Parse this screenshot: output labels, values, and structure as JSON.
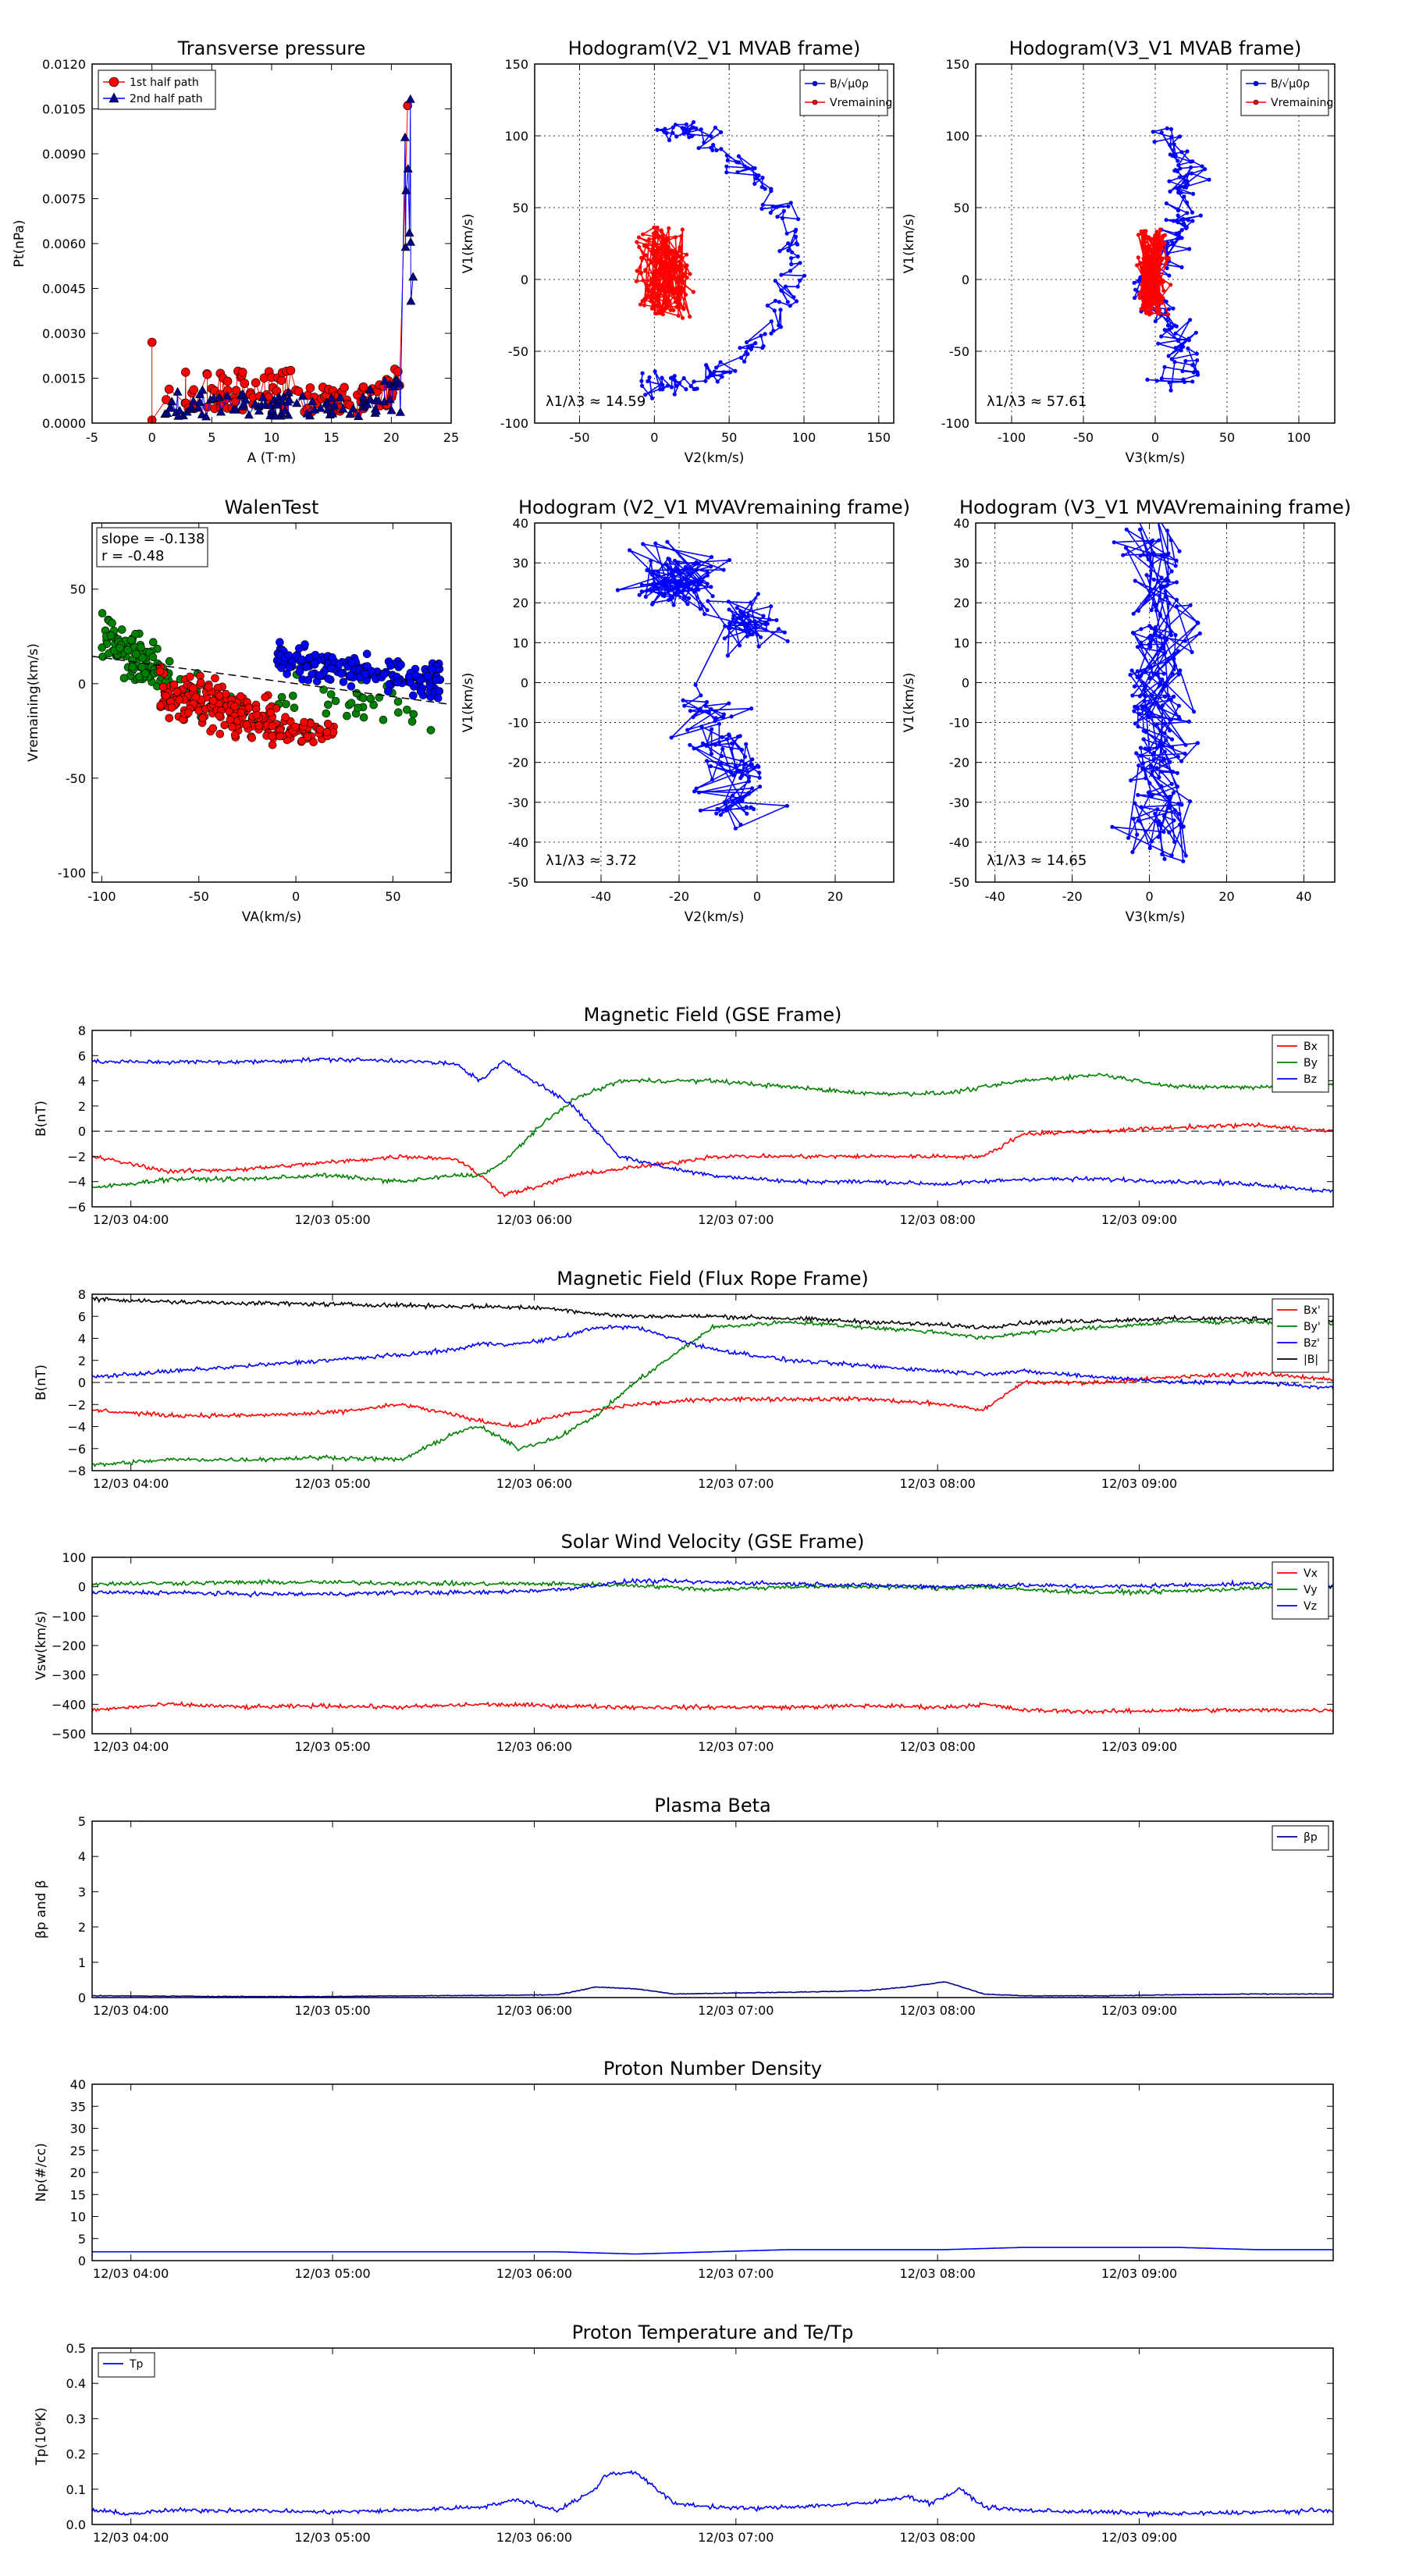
{
  "colors": {
    "red": "#ff0000",
    "blue": "#0000ff",
    "green": "#008000",
    "black": "#000000",
    "navy": "#00008b"
  },
  "time_ticks": [
    "12/03 04:00",
    "12/03 05:00",
    "12/03 06:00",
    "12/03 07:00",
    "12/03 08:00",
    "12/03 09:00"
  ],
  "chart_data": [
    {
      "id": "pt",
      "type": "scatter",
      "title": "Transverse pressure",
      "xlabel": "A (T·m)",
      "ylabel": "Pt(nPa)",
      "xlim": [
        -5,
        25
      ],
      "ylim": [
        0,
        0.012
      ],
      "xticks": [
        "-5",
        "0",
        "5",
        "10",
        "15",
        "20",
        "25"
      ],
      "yticks": [
        "0.0000",
        "0.0015",
        "0.0030",
        "0.0045",
        "0.0060",
        "0.0075",
        "0.0090",
        "0.0105",
        "0.0120"
      ],
      "legend": {
        "loc": "top-left",
        "entries": [
          "1st half path",
          "2nd half path"
        ]
      },
      "series": [
        {
          "name": "1st half path",
          "color": "#ff0000",
          "marker": "circle"
        },
        {
          "name": "2nd half path",
          "color": "#0000ff",
          "marker": "triangle"
        }
      ]
    },
    {
      "id": "h1",
      "type": "line",
      "title": "Hodogram(V2_V1 MVAB frame)",
      "xlabel": "V2(km/s)",
      "ylabel": "V1(km/s)",
      "xlim": [
        -80,
        160
      ],
      "ylim": [
        -100,
        150
      ],
      "xticks": [
        "-50",
        "0",
        "50",
        "100",
        "150"
      ],
      "yticks": [
        "-100",
        "-50",
        "0",
        "50",
        "100",
        "150"
      ],
      "grid": true,
      "annotation": "λ1/λ3 ≈ 14.59",
      "legend": {
        "loc": "top-right",
        "entries": [
          "B/√μ0ρ",
          "Vremaining"
        ]
      }
    },
    {
      "id": "h2",
      "type": "line",
      "title": "Hodogram(V3_V1 MVAB frame)",
      "xlabel": "V3(km/s)",
      "ylabel": "V1(km/s)",
      "xlim": [
        -125,
        125
      ],
      "ylim": [
        -100,
        150
      ],
      "xticks": [
        "-100",
        "-50",
        "0",
        "50",
        "100"
      ],
      "yticks": [
        "-100",
        "-50",
        "0",
        "50",
        "100",
        "150"
      ],
      "grid": true,
      "annotation": "λ1/λ3 ≈ 57.61",
      "legend": {
        "loc": "top-right",
        "entries": [
          "B/√μ0ρ",
          "Vremaining"
        ]
      }
    },
    {
      "id": "walen",
      "type": "scatter",
      "title": "WalenTest",
      "xlabel": "VA(km/s)",
      "ylabel": "Vremaining(km/s)",
      "xlim": [
        -105,
        80
      ],
      "ylim": [
        -105,
        85
      ],
      "xticks": [
        "-100",
        "-50",
        "0",
        "50"
      ],
      "yticks": [
        "-100",
        "-50",
        "0",
        "50"
      ],
      "annotation": [
        "slope = -0.138",
        "r = -0.48"
      ]
    },
    {
      "id": "h3",
      "type": "line",
      "title": "Hodogram (V2_V1 MVAVremaining frame)",
      "xlabel": "V2(km/s)",
      "ylabel": "V1(km/s)",
      "xlim": [
        -57,
        35
      ],
      "ylim": [
        -50,
        40
      ],
      "xticks": [
        "-40",
        "-20",
        "0",
        "20"
      ],
      "yticks": [
        "-50",
        "-40",
        "-30",
        "-20",
        "-10",
        "0",
        "10",
        "20",
        "30",
        "40"
      ],
      "grid": true,
      "annotation": "λ1/λ3 ≈ 3.72"
    },
    {
      "id": "h4",
      "type": "line",
      "title": "Hodogram (V3_V1 MVAVremaining frame)",
      "xlabel": "V3(km/s)",
      "ylabel": "V1(km/s)",
      "xlim": [
        -45,
        48
      ],
      "ylim": [
        -50,
        40
      ],
      "xticks": [
        "-40",
        "-20",
        "0",
        "20",
        "40"
      ],
      "yticks": [
        "-50",
        "-40",
        "-30",
        "-20",
        "-10",
        "0",
        "10",
        "20",
        "30",
        "40"
      ],
      "grid": true,
      "annotation": "λ1/λ3 ≈ 14.65"
    },
    {
      "id": "bgse",
      "type": "line",
      "title": "Magnetic Field (GSE Frame)",
      "ylabel": "B(nT)",
      "ylim": [
        -6,
        8
      ],
      "yticks": [
        "−6",
        "−4",
        "−2",
        "0",
        "2",
        "4",
        "6",
        "8"
      ],
      "legend": {
        "loc": "top-right",
        "entries": [
          "Bx",
          "By",
          "Bz"
        ]
      },
      "series": [
        {
          "name": "Bx",
          "color": "#ff0000",
          "x": [
            0,
            10,
            20,
            30,
            40,
            47,
            50,
            53,
            57,
            62,
            68,
            75,
            80,
            90,
            100,
            110,
            115,
            120,
            130,
            140,
            150,
            160
          ],
          "y": [
            -2,
            -3.2,
            -3,
            -2.5,
            -2,
            -2.2,
            -3.5,
            -5,
            -4.5,
            -3.5,
            -3,
            -2.5,
            -2,
            -2,
            -2,
            -2,
            -2,
            -0.2,
            0,
            0.3,
            0.5,
            0
          ]
        },
        {
          "name": "By",
          "color": "#008000",
          "x": [
            0,
            10,
            20,
            30,
            40,
            47,
            50,
            53,
            57,
            62,
            68,
            75,
            80,
            90,
            100,
            110,
            115,
            120,
            130,
            140,
            150,
            160
          ],
          "y": [
            -4.5,
            -3.8,
            -3.8,
            -3.5,
            -4,
            -3.5,
            -3.5,
            -2.5,
            0,
            2.5,
            4,
            4,
            4,
            3.5,
            3,
            3,
            3.5,
            4,
            4.5,
            3.5,
            3.5,
            3.8
          ]
        },
        {
          "name": "Bz",
          "color": "#0000ff",
          "x": [
            0,
            10,
            20,
            30,
            40,
            47,
            50,
            53,
            57,
            62,
            68,
            75,
            80,
            90,
            100,
            110,
            115,
            120,
            130,
            140,
            150,
            160
          ],
          "y": [
            5.5,
            5.5,
            5.5,
            5.7,
            5.6,
            5.3,
            4,
            5.5,
            4,
            2,
            -2,
            -3,
            -3.5,
            -4,
            -4,
            -4.2,
            -4,
            -3.8,
            -3.8,
            -4,
            -4.2,
            -4.8
          ]
        }
      ]
    },
    {
      "id": "bfr",
      "type": "line",
      "title": "Magnetic Field (Flux Rope Frame)",
      "ylabel": "B(nT)",
      "ylim": [
        -8,
        8
      ],
      "yticks": [
        "−8",
        "−6",
        "−4",
        "−2",
        "0",
        "2",
        "4",
        "6",
        "8"
      ],
      "legend": {
        "loc": "top-right",
        "entries": [
          "Bx'",
          "By'",
          "Bz'",
          "|B|"
        ]
      },
      "series": [
        {
          "name": "Bx'",
          "color": "#ff0000",
          "x": [
            0,
            10,
            20,
            30,
            40,
            47,
            50,
            55,
            60,
            65,
            70,
            80,
            90,
            100,
            110,
            115,
            120,
            130,
            140,
            150,
            160
          ],
          "y": [
            -2.5,
            -3,
            -3,
            -2.8,
            -2,
            -3,
            -3.5,
            -4,
            -3,
            -2.5,
            -2,
            -1.5,
            -1.5,
            -1.5,
            -2,
            -2.5,
            0,
            0,
            0.5,
            0.8,
            0.3
          ]
        },
        {
          "name": "By'",
          "color": "#008000",
          "x": [
            0,
            10,
            20,
            30,
            40,
            47,
            50,
            55,
            60,
            65,
            70,
            80,
            90,
            100,
            110,
            115,
            120,
            130,
            140,
            150,
            160
          ],
          "y": [
            -7.5,
            -7,
            -7,
            -6.8,
            -7,
            -4.5,
            -4,
            -6,
            -5,
            -3,
            0,
            5,
            5.5,
            5,
            4.5,
            4,
            4.5,
            5,
            5.5,
            5.5,
            5.3
          ]
        },
        {
          "name": "Bz'",
          "color": "#0000ff",
          "x": [
            0,
            10,
            20,
            30,
            40,
            47,
            50,
            55,
            60,
            65,
            70,
            80,
            90,
            100,
            110,
            115,
            120,
            130,
            140,
            150,
            160
          ],
          "y": [
            0.5,
            1,
            1.5,
            2,
            2.5,
            3,
            3.5,
            3.5,
            4,
            5,
            5,
            3,
            2,
            1.5,
            1,
            0.8,
            1,
            0.5,
            0,
            0,
            -0.5
          ]
        },
        {
          "name": "|B|",
          "color": "#000000",
          "x": [
            0,
            10,
            20,
            30,
            40,
            47,
            50,
            55,
            60,
            65,
            70,
            80,
            90,
            100,
            110,
            115,
            120,
            130,
            140,
            150,
            160
          ],
          "y": [
            7.6,
            7.3,
            7.2,
            7.1,
            7,
            6.9,
            6.9,
            6.8,
            6.7,
            6.2,
            6,
            6,
            5.8,
            5.5,
            5.2,
            5,
            5.4,
            5.6,
            5.8,
            5.8,
            5.6
          ]
        }
      ]
    },
    {
      "id": "vsw",
      "type": "line",
      "title": "Solar Wind Velocity (GSE Frame)",
      "ylabel": "Vsw(km/s)",
      "ylim": [
        -500,
        100
      ],
      "yticks": [
        "−500",
        "−400",
        "−300",
        "−200",
        "−100",
        "0",
        "100"
      ],
      "legend": {
        "loc": "top-right",
        "entries": [
          "Vx",
          "Vy",
          "Vz"
        ]
      },
      "series": [
        {
          "name": "Vx",
          "color": "#ff0000",
          "x": [
            0,
            10,
            20,
            30,
            40,
            50,
            60,
            70,
            80,
            90,
            100,
            110,
            115,
            120,
            130,
            140,
            150,
            160
          ],
          "y": [
            -420,
            -400,
            -410,
            -405,
            -410,
            -400,
            -405,
            -410,
            -410,
            -410,
            -405,
            -410,
            -400,
            -420,
            -425,
            -420,
            -420,
            -420
          ]
        },
        {
          "name": "Vy",
          "color": "#008000",
          "x": [
            0,
            10,
            20,
            30,
            40,
            50,
            60,
            70,
            80,
            90,
            100,
            110,
            115,
            120,
            130,
            140,
            150,
            160
          ],
          "y": [
            10,
            12,
            15,
            15,
            12,
            10,
            10,
            5,
            -10,
            0,
            0,
            -5,
            0,
            -10,
            -20,
            -15,
            -5,
            0
          ]
        },
        {
          "name": "Vz",
          "color": "#0000ff",
          "x": [
            0,
            10,
            20,
            30,
            40,
            50,
            60,
            70,
            80,
            90,
            100,
            110,
            115,
            120,
            130,
            140,
            150,
            160
          ],
          "y": [
            -20,
            -20,
            -25,
            -25,
            -20,
            -20,
            -10,
            20,
            15,
            10,
            5,
            0,
            5,
            5,
            0,
            5,
            10,
            5
          ]
        }
      ]
    },
    {
      "id": "beta",
      "type": "line",
      "title": "Plasma Beta",
      "ylabel": "βp and β",
      "ylim": [
        0,
        5
      ],
      "yticks": [
        "0",
        "1",
        "2",
        "3",
        "4",
        "5"
      ],
      "legend": {
        "loc": "top-right",
        "entries": [
          "βp"
        ]
      },
      "series": [
        {
          "name": "βp",
          "color": "#00008b",
          "x": [
            0,
            10,
            20,
            30,
            40,
            50,
            60,
            65,
            70,
            75,
            80,
            90,
            100,
            105,
            110,
            115,
            120,
            130,
            140,
            150,
            160
          ],
          "y": [
            0.05,
            0.04,
            0.03,
            0.03,
            0.05,
            0.06,
            0.08,
            0.3,
            0.25,
            0.1,
            0.12,
            0.15,
            0.2,
            0.3,
            0.45,
            0.1,
            0.05,
            0.05,
            0.08,
            0.1,
            0.1
          ]
        }
      ]
    },
    {
      "id": "np",
      "type": "line",
      "title": "Proton Number Density",
      "ylabel": "Np(#/cc)",
      "ylim": [
        0,
        40
      ],
      "yticks": [
        "0",
        "5",
        "10",
        "15",
        "20",
        "25",
        "30",
        "35",
        "40"
      ],
      "series": [
        {
          "name": "Np",
          "color": "#0000ff",
          "x": [
            0,
            20,
            40,
            60,
            70,
            80,
            90,
            100,
            110,
            120,
            130,
            140,
            150,
            160
          ],
          "y": [
            2,
            2,
            2,
            2,
            1.5,
            2,
            2.5,
            2.5,
            2.5,
            3,
            3,
            3,
            2.5,
            2.5
          ]
        }
      ]
    },
    {
      "id": "tp",
      "type": "line",
      "title": "Proton Temperature and Te/Tp",
      "ylabel": "Tp(10⁶K)",
      "ylim": [
        0,
        0.5
      ],
      "yticks": [
        "0.0",
        "0.1",
        "0.2",
        "0.3",
        "0.4",
        "0.5"
      ],
      "legend": {
        "loc": "top-left",
        "entries": [
          "Tp"
        ]
      },
      "series": [
        {
          "name": "Tp",
          "color": "#0000ff",
          "x": [
            0,
            5,
            10,
            20,
            30,
            40,
            50,
            55,
            60,
            65,
            66,
            70,
            75,
            80,
            85,
            90,
            100,
            105,
            108,
            112,
            115,
            120,
            130,
            140,
            150,
            160
          ],
          "y": [
            0.04,
            0.03,
            0.04,
            0.04,
            0.035,
            0.04,
            0.05,
            0.07,
            0.04,
            0.1,
            0.14,
            0.15,
            0.06,
            0.05,
            0.045,
            0.05,
            0.06,
            0.08,
            0.06,
            0.1,
            0.05,
            0.04,
            0.035,
            0.03,
            0.035,
            0.04
          ]
        }
      ]
    }
  ]
}
